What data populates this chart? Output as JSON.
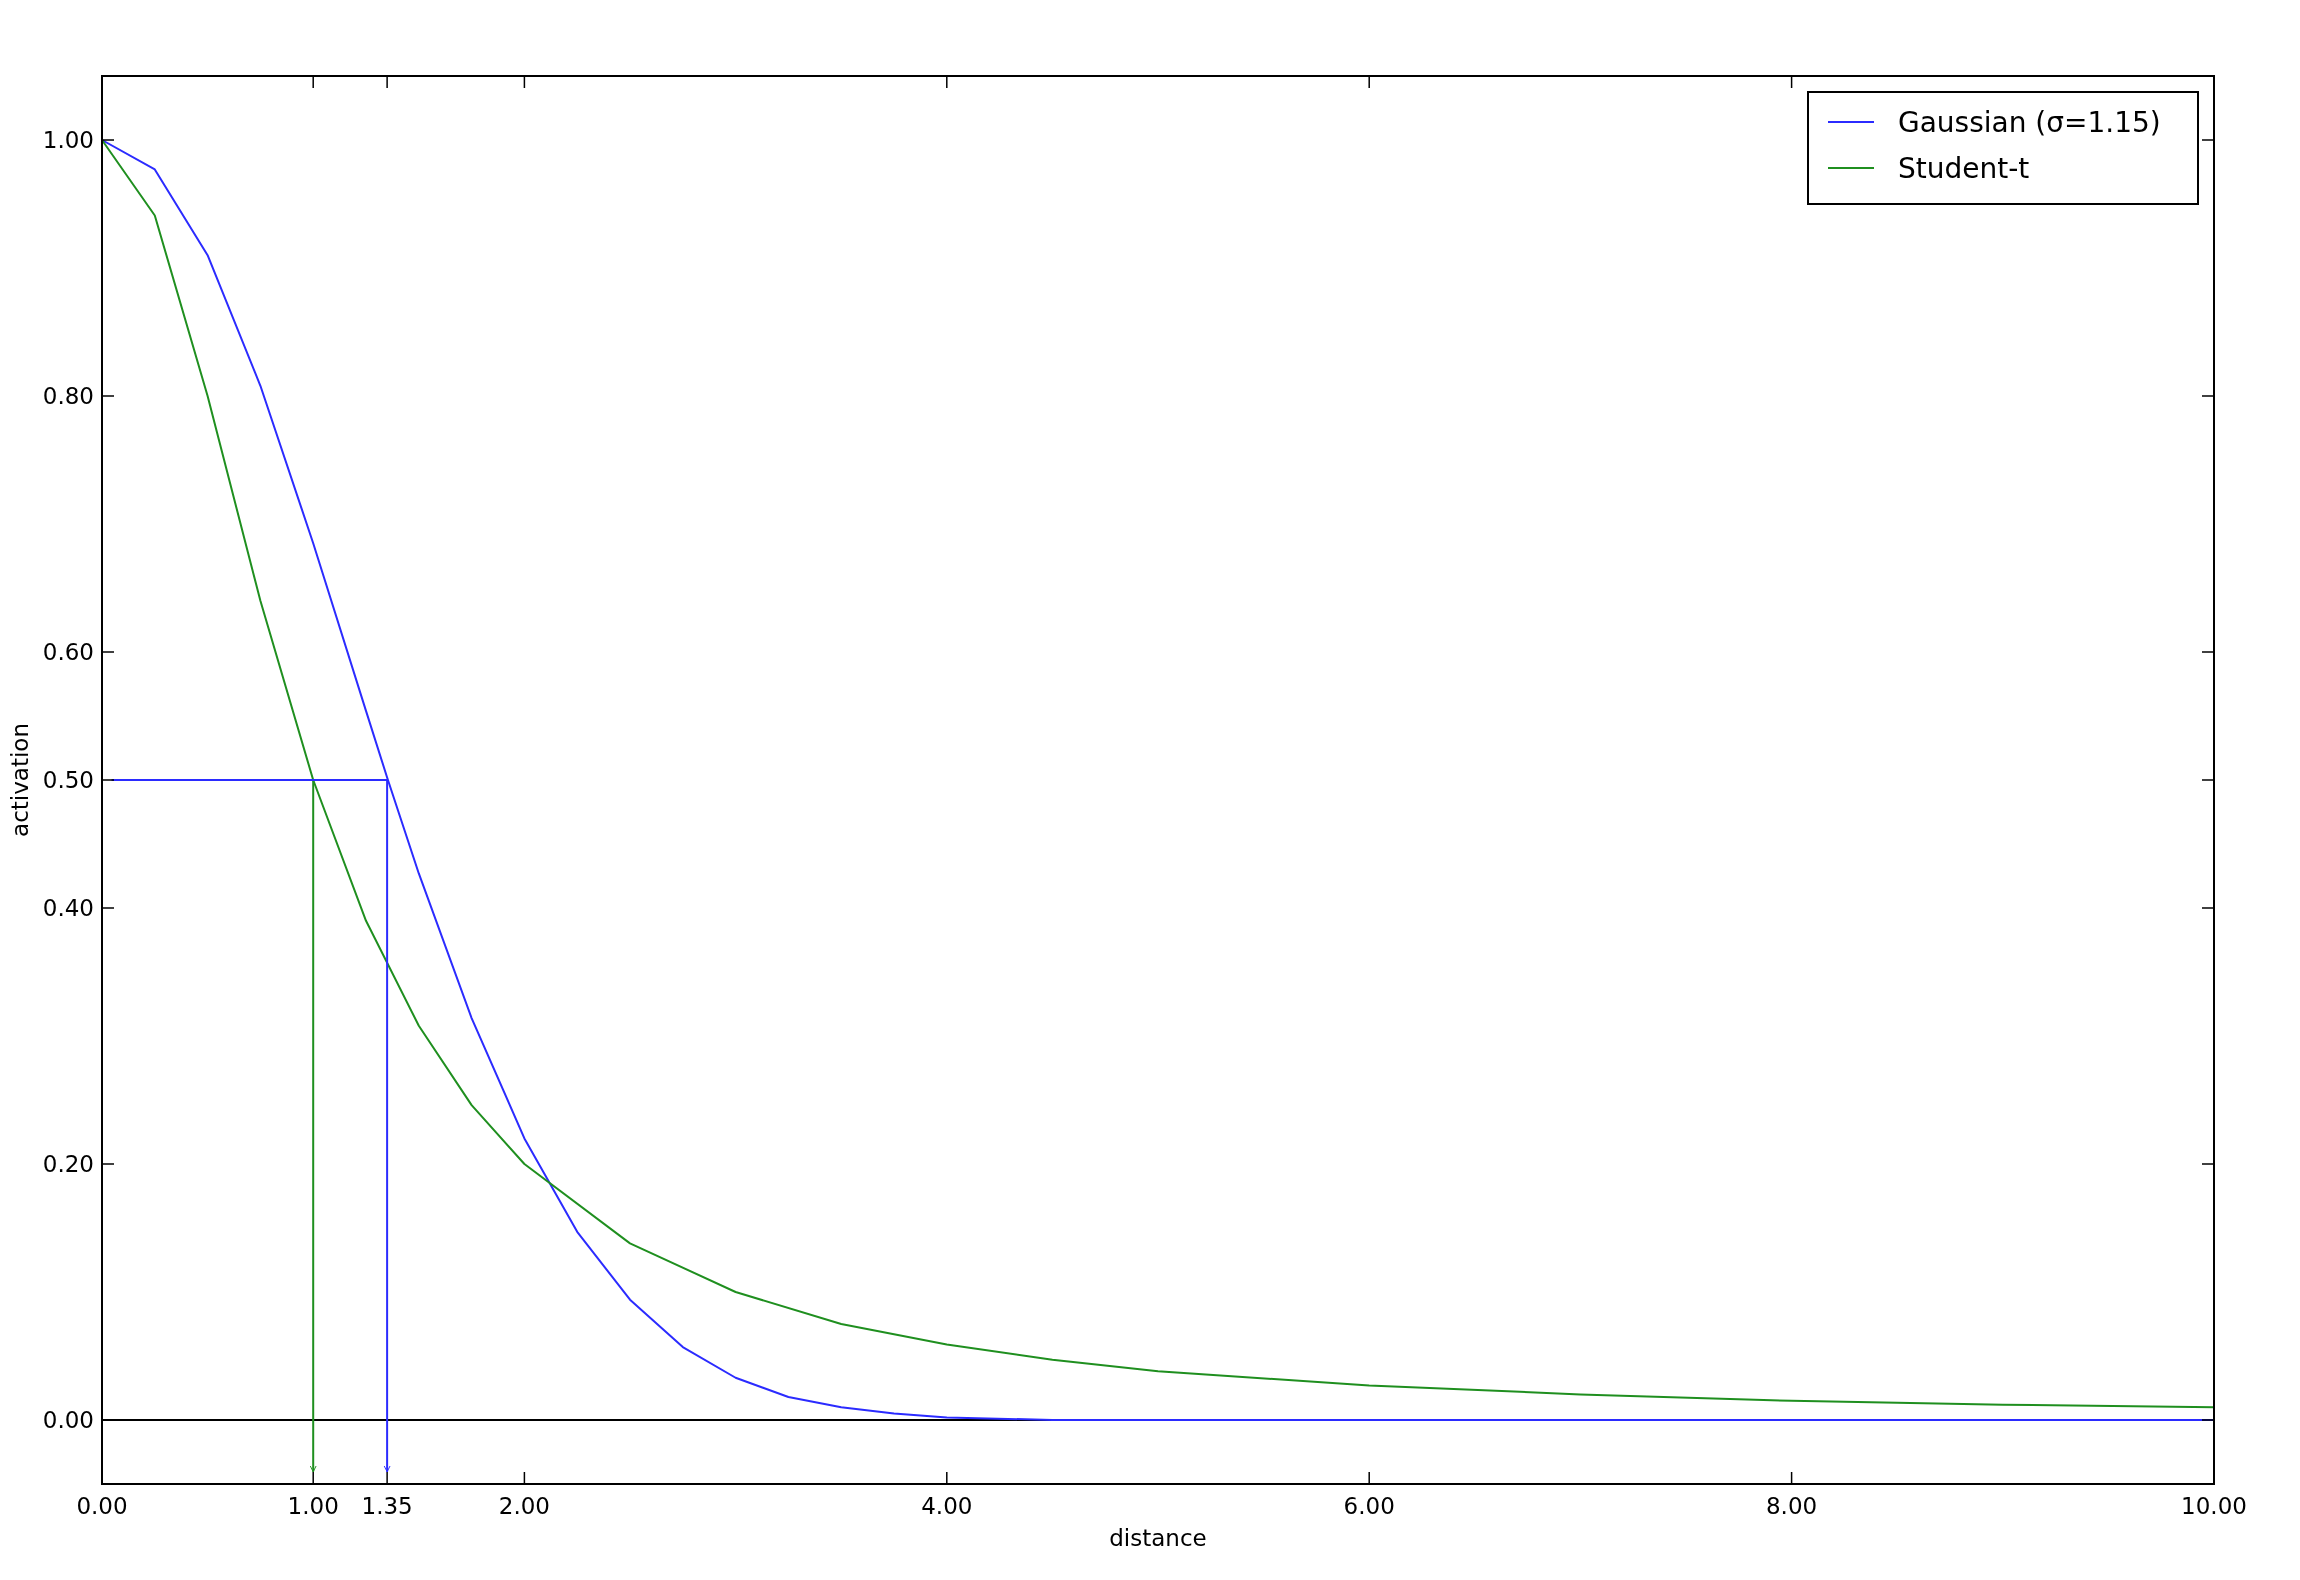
{
  "chart_data": {
    "type": "line",
    "xlabel": "distance",
    "ylabel": "activation",
    "xlim": [
      0,
      10
    ],
    "ylim": [
      -0.05,
      1.05
    ],
    "xticks": [
      {
        "value": 0,
        "label": "0.00"
      },
      {
        "value": 1,
        "label": "1.00"
      },
      {
        "value": 1.35,
        "label": "1.35"
      },
      {
        "value": 2,
        "label": "2.00"
      },
      {
        "value": 4,
        "label": "4.00"
      },
      {
        "value": 6,
        "label": "6.00"
      },
      {
        "value": 8,
        "label": "8.00"
      },
      {
        "value": 10,
        "label": "10.00"
      }
    ],
    "yticks": [
      {
        "value": 0,
        "label": "0.00"
      },
      {
        "value": 0.2,
        "label": "0.20"
      },
      {
        "value": 0.4,
        "label": "0.40"
      },
      {
        "value": 0.5,
        "label": "0.50"
      },
      {
        "value": 0.6,
        "label": "0.60"
      },
      {
        "value": 0.8,
        "label": "0.80"
      },
      {
        "value": 1,
        "label": "1.00"
      }
    ],
    "legend": "top right",
    "grid": false,
    "ref_lines": [
      {
        "axis": "y",
        "value": 0,
        "color": "#000000"
      }
    ],
    "series": [
      {
        "name": "Gaussian (σ=1.15)",
        "color": "#2b2bff",
        "x": [
          0,
          0.25,
          0.5,
          0.75,
          1,
          1.25,
          1.35,
          1.5,
          1.75,
          2,
          2.25,
          2.5,
          2.75,
          3,
          3.25,
          3.5,
          3.75,
          4,
          4.5,
          5,
          6,
          7,
          8,
          9,
          10
        ],
        "values": [
          1,
          0.977,
          0.91,
          0.808,
          0.685,
          0.554,
          0.502,
          0.427,
          0.314,
          0.22,
          0.147,
          0.094,
          0.057,
          0.033,
          0.018,
          0.01,
          0.005,
          0.002,
          0,
          0,
          0,
          0,
          0,
          0,
          0
        ]
      },
      {
        "name": "Student-t",
        "color": "#1f8f1f",
        "x": [
          0,
          0.25,
          0.5,
          0.75,
          1,
          1.25,
          1.5,
          1.75,
          2,
          2.5,
          3,
          3.5,
          4,
          4.5,
          5,
          6,
          7,
          8,
          9,
          10
        ],
        "values": [
          1,
          0.941,
          0.8,
          0.64,
          0.5,
          0.39,
          0.308,
          0.246,
          0.2,
          0.138,
          0.1,
          0.075,
          0.059,
          0.047,
          0.038,
          0.027,
          0.02,
          0.015,
          0.012,
          0.01
        ]
      },
      {
        "type": "line",
        "color": "#1f8f1f",
        "x": [
          0.05,
          1,
          1
        ],
        "values": [
          0.5,
          0.5,
          -0.04
        ]
      },
      {
        "type": "line",
        "color": "#2b2bff",
        "x": [
          0.05,
          1.35,
          1.35
        ],
        "values": [
          0.5,
          0.5,
          -0.04
        ]
      }
    ]
  }
}
